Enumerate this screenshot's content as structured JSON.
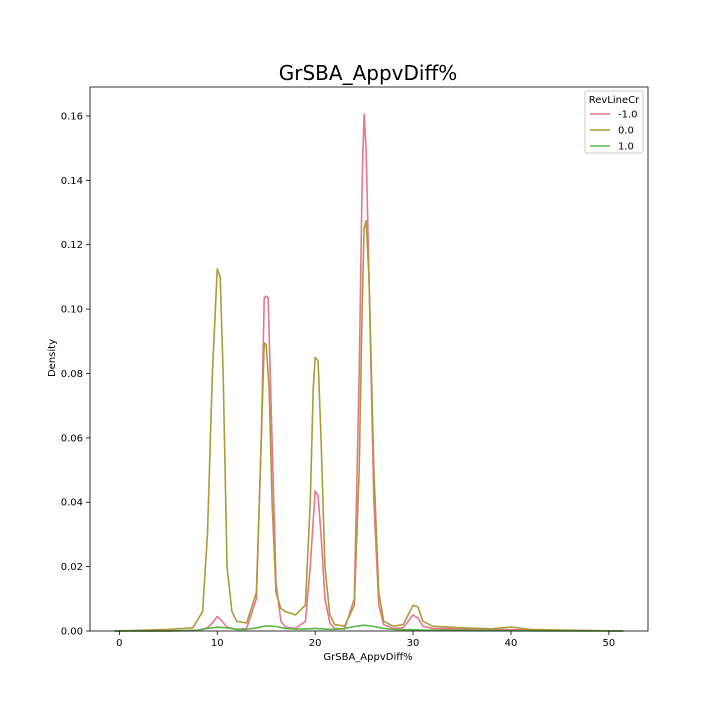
{
  "chart_data": {
    "type": "line",
    "title": "GrSBA_AppvDiff%",
    "xlabel": "GrSBA_AppvDiff%",
    "ylabel": "Density",
    "xlim": [
      -3,
      54
    ],
    "ylim": [
      0,
      0.169
    ],
    "xticks": [
      "0",
      "10",
      "20",
      "30",
      "40",
      "50"
    ],
    "xtick_values": [
      0,
      10,
      20,
      30,
      40,
      50
    ],
    "yticks": [
      "0.00",
      "0.02",
      "0.04",
      "0.06",
      "0.08",
      "0.10",
      "0.12",
      "0.14",
      "0.16"
    ],
    "ytick_values": [
      0,
      0.02,
      0.04,
      0.06,
      0.08,
      0.1,
      0.12,
      0.14,
      0.16
    ],
    "legend": {
      "title": "RevLineCr",
      "position": "top-right"
    },
    "grid": false,
    "series": [
      {
        "name": "-1.0",
        "color": "#e8758a",
        "x": [
          -0.5,
          5,
          8,
          9,
          9.5,
          10,
          10.5,
          11,
          12,
          13,
          14,
          14.5,
          14.8,
          15,
          15.2,
          15.5,
          16,
          16.5,
          17,
          18,
          19,
          19.5,
          20,
          20.3,
          20.6,
          21,
          21.5,
          22,
          23,
          24,
          24.5,
          24.8,
          25,
          25.2,
          25.5,
          26,
          26.5,
          27,
          28,
          29,
          29.5,
          30,
          30.5,
          31,
          32,
          35,
          40,
          45,
          51.5
        ],
        "y": [
          0,
          0,
          0.0002,
          0.001,
          0.0025,
          0.0045,
          0.003,
          0.0012,
          0.0005,
          0.0008,
          0.01,
          0.06,
          0.1035,
          0.104,
          0.1035,
          0.07,
          0.015,
          0.003,
          0.0012,
          0.0008,
          0.003,
          0.02,
          0.0435,
          0.042,
          0.03,
          0.01,
          0.0025,
          0.0008,
          0.0006,
          0.01,
          0.08,
          0.14,
          0.1605,
          0.15,
          0.11,
          0.04,
          0.008,
          0.002,
          0.0008,
          0.001,
          0.003,
          0.005,
          0.004,
          0.0015,
          0.0008,
          0.0006,
          0.0004,
          0.0002,
          0
        ]
      },
      {
        "name": "0.0",
        "color": "#ad9a3a",
        "x": [
          -0.5,
          5,
          7.5,
          8.5,
          9,
          9.5,
          10,
          10.3,
          10.6,
          11,
          11.5,
          12,
          13,
          14,
          14.5,
          14.8,
          15,
          15.3,
          15.6,
          16,
          16.5,
          17,
          18,
          19,
          19.5,
          19.8,
          20,
          20.3,
          20.6,
          21,
          21.5,
          22,
          23,
          24,
          24.5,
          24.8,
          25,
          25.2,
          25.5,
          26,
          26.5,
          27,
          28,
          29,
          29.5,
          30,
          30.5,
          31,
          32,
          35,
          38,
          40,
          42,
          45,
          51.5
        ],
        "y": [
          0,
          0.0005,
          0.001,
          0.006,
          0.03,
          0.08,
          0.1125,
          0.11,
          0.08,
          0.02,
          0.006,
          0.003,
          0.0025,
          0.012,
          0.06,
          0.0895,
          0.089,
          0.075,
          0.04,
          0.012,
          0.007,
          0.006,
          0.005,
          0.008,
          0.04,
          0.075,
          0.085,
          0.084,
          0.06,
          0.02,
          0.005,
          0.002,
          0.0015,
          0.008,
          0.05,
          0.1,
          0.125,
          0.1275,
          0.11,
          0.05,
          0.012,
          0.003,
          0.0015,
          0.002,
          0.005,
          0.008,
          0.0075,
          0.003,
          0.0015,
          0.001,
          0.0007,
          0.0012,
          0.0005,
          0.0003,
          0
        ]
      },
      {
        "name": "1.0",
        "color": "#5db54a",
        "x": [
          -0.5,
          5,
          8,
          9,
          10,
          11,
          12,
          13,
          14,
          15,
          16,
          17,
          18,
          19,
          20,
          21,
          22,
          23,
          24,
          25,
          26,
          27,
          28,
          29,
          30,
          31,
          35,
          40,
          45,
          51.5
        ],
        "y": [
          0,
          0,
          0.0002,
          0.0008,
          0.0012,
          0.001,
          0.0005,
          0.0005,
          0.001,
          0.0016,
          0.0014,
          0.0008,
          0.0006,
          0.0006,
          0.0008,
          0.0006,
          0.0005,
          0.0008,
          0.0014,
          0.0018,
          0.0014,
          0.0008,
          0.0005,
          0.0004,
          0.0004,
          0.0003,
          0.0002,
          0.0001,
          0,
          0
        ]
      }
    ]
  }
}
